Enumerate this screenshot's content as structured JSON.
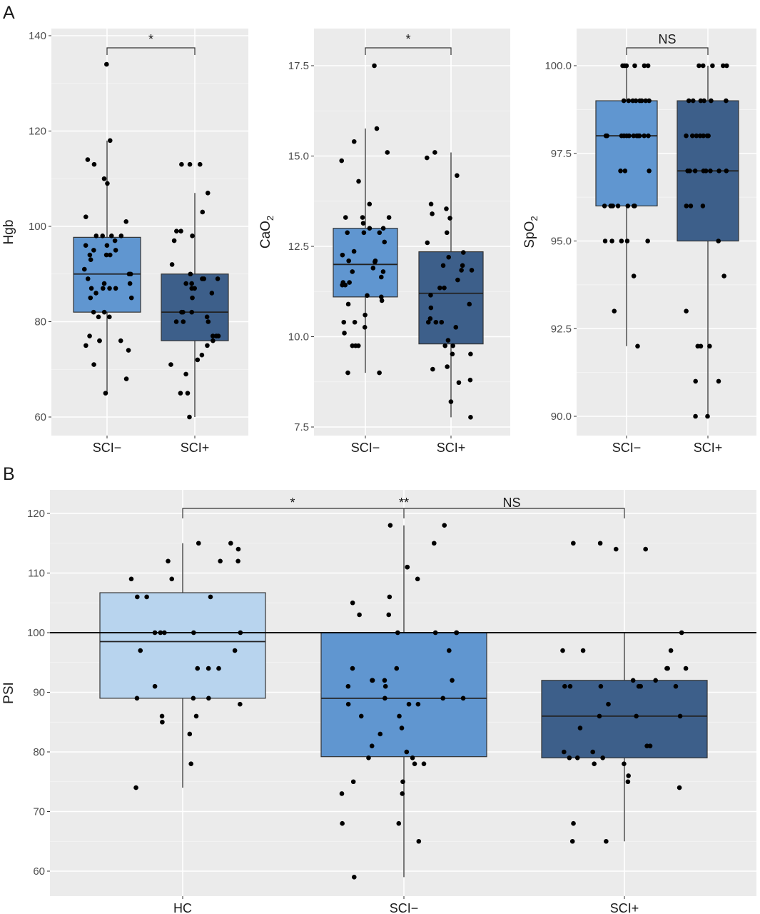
{
  "panel_labels": [
    "A",
    "B"
  ],
  "chart_data": [
    {
      "type": "box",
      "panel": "A",
      "ylabel": "Hgb",
      "ylabel_sub": "",
      "yticks": [
        60,
        80,
        100,
        120,
        140
      ],
      "ylim": [
        57,
        141
      ],
      "categories": [
        "SCI−",
        "SCI+"
      ],
      "colors": [
        "#6096d0",
        "#3d5f8a"
      ],
      "significance": [
        {
          "from": 0,
          "to": 1,
          "label": "*"
        }
      ],
      "boxes": [
        {
          "q1": 82,
          "median": 90,
          "q3": 97.7,
          "whisker_low": 65,
          "whisker_high": 118
        },
        {
          "q1": 76,
          "median": 82,
          "q3": 90,
          "whisker_low": 60,
          "whisker_high": 107
        }
      ],
      "points": [
        [
          134,
          118,
          114,
          113,
          110,
          109,
          102,
          101,
          98,
          98,
          98,
          98,
          97,
          96,
          96,
          95,
          95,
          94,
          94,
          94,
          93,
          91,
          90,
          90,
          89,
          88,
          88,
          87,
          87,
          87,
          87,
          86,
          85,
          85,
          82,
          82,
          81,
          81,
          77,
          76,
          76,
          76,
          75,
          74,
          71,
          68,
          65
        ],
        [
          113,
          113,
          113,
          107,
          103,
          99,
          99,
          98,
          97,
          92,
          90,
          89,
          89,
          89,
          88,
          88,
          87,
          87,
          86,
          85,
          82,
          82,
          82,
          81,
          80,
          80,
          80,
          77,
          77,
          77,
          76,
          75,
          73,
          72,
          71,
          69,
          65,
          65,
          60
        ]
      ]
    },
    {
      "type": "box",
      "panel": "A",
      "ylabel": "CaO",
      "ylabel_sub": "2",
      "yticks": [
        7.5,
        10.0,
        12.5,
        15.0,
        17.5
      ],
      "ylim": [
        7.0,
        18.5
      ],
      "categories": [
        "SCI−",
        "SCI+"
      ],
      "colors": [
        "#6096d0",
        "#3d5f8a"
      ],
      "significance": [
        {
          "from": 0,
          "to": 1,
          "label": "*"
        }
      ],
      "boxes": [
        {
          "q1": 11.1,
          "median": 12.0,
          "q3": 13.0,
          "whisker_low": 9.0,
          "whisker_high": 15.76
        },
        {
          "q1": 9.8,
          "median": 11.2,
          "q3": 12.35,
          "whisker_low": 7.77,
          "whisker_high": 15.1
        }
      ],
      "points": [
        [
          17.5,
          15.76,
          15.4,
          15.1,
          14.87,
          14.3,
          13.67,
          13.3,
          13.3,
          13.3,
          13.14,
          13.0,
          13.0,
          12.88,
          12.88,
          12.88,
          12.62,
          12.36,
          12.26,
          12.1,
          12.1,
          12.07,
          11.9,
          11.8,
          11.8,
          11.65,
          11.5,
          11.5,
          11.43,
          11.43,
          11.14,
          11.1,
          11.0,
          10.9,
          10.6,
          10.4,
          10.4,
          10.26,
          10.1,
          9.75,
          9.75,
          9.75,
          9.0,
          9.0
        ],
        [
          15.1,
          14.95,
          14.46,
          13.67,
          13.54,
          13.4,
          13.28,
          12.88,
          12.6,
          12.33,
          12.2,
          11.97,
          11.97,
          11.84,
          11.84,
          11.57,
          11.35,
          11.35,
          11.15,
          10.9,
          10.8,
          10.5,
          10.4,
          10.4,
          10.4,
          10.26,
          9.9,
          9.75,
          9.75,
          9.52,
          9.52,
          9.17,
          9.1,
          8.8,
          8.73,
          8.2,
          7.77
        ]
      ]
    },
    {
      "type": "box",
      "panel": "A",
      "ylabel": "SpO",
      "ylabel_sub": "2",
      "yticks": [
        90.0,
        92.5,
        95.0,
        97.5,
        100.0
      ],
      "ylim": [
        89.5,
        101.0
      ],
      "categories": [
        "SCI−",
        "SCI+"
      ],
      "colors": [
        "#6096d0",
        "#3d5f8a"
      ],
      "significance": [
        {
          "from": 0,
          "to": 1,
          "label": "NS"
        }
      ],
      "boxes": [
        {
          "q1": 96,
          "median": 98,
          "q3": 99,
          "whisker_low": 92,
          "whisker_high": 100
        },
        {
          "q1": 95,
          "median": 97,
          "q3": 99,
          "whisker_low": 90,
          "whisker_high": 100
        }
      ],
      "points": [
        [
          100,
          100,
          100,
          100,
          100,
          100,
          99,
          99,
          99,
          99,
          99,
          99,
          99,
          99,
          98,
          98,
          98,
          98,
          98,
          98,
          98,
          98,
          98,
          98,
          98,
          98,
          97,
          97,
          97,
          96,
          96,
          96,
          96,
          96,
          96,
          96,
          96,
          95,
          95,
          95,
          95,
          95,
          94,
          93,
          92
        ],
        [
          100,
          100,
          100,
          100,
          100,
          99,
          99,
          99,
          99,
          99,
          99,
          98,
          98,
          98,
          98,
          98,
          98,
          98,
          97,
          97,
          97,
          97,
          97,
          97,
          97,
          97,
          96,
          96,
          96,
          95,
          94,
          93,
          92,
          92,
          92,
          91,
          91,
          90,
          90
        ]
      ]
    },
    {
      "type": "box",
      "panel": "B",
      "ylabel": "PSI",
      "ylabel_sub": "",
      "yticks": [
        60,
        70,
        80,
        90,
        100,
        110,
        120
      ],
      "ylim": [
        56,
        124
      ],
      "reference_line": 100,
      "categories": [
        "HC",
        "SCI−",
        "SCI+"
      ],
      "colors": [
        "#b8d4ee",
        "#6096d0",
        "#3d5f8a"
      ],
      "significance": [
        {
          "from": 0,
          "to": 1,
          "label": "*"
        },
        {
          "from": 1,
          "to": 1,
          "label": "**"
        },
        {
          "from": 1,
          "to": 2,
          "label": "NS"
        }
      ],
      "boxes": [
        {
          "q1": 89,
          "median": 98.5,
          "q3": 106.7,
          "whisker_low": 74,
          "whisker_high": 115
        },
        {
          "q1": 79.2,
          "median": 89,
          "q3": 100,
          "whisker_low": 59,
          "whisker_high": 118
        },
        {
          "q1": 79,
          "median": 86,
          "q3": 92,
          "whisker_low": 65,
          "whisker_high": 100
        }
      ],
      "points": [
        [
          115,
          115,
          114,
          112,
          112,
          112,
          109,
          109,
          106,
          106,
          106,
          100,
          100,
          100,
          100,
          100,
          97,
          97,
          94,
          94,
          94,
          91,
          89,
          89,
          89,
          88,
          86,
          86,
          85,
          83,
          78,
          74
        ],
        [
          118,
          118,
          115,
          111,
          111,
          109,
          106,
          105,
          103,
          103,
          100,
          100,
          100,
          100,
          97,
          94,
          94,
          92,
          92,
          92,
          92,
          91,
          91,
          89,
          89,
          89,
          88,
          88,
          88,
          86,
          86,
          84,
          83,
          81,
          80,
          79,
          79,
          78,
          78,
          75,
          75,
          73,
          73,
          68,
          68,
          65,
          59
        ],
        [
          115,
          115,
          114,
          114,
          100,
          97,
          97,
          97,
          94,
          94,
          94,
          92,
          92,
          91,
          91,
          91,
          91,
          91,
          91,
          88,
          86,
          86,
          86,
          84,
          81,
          81,
          80,
          80,
          79,
          79,
          79,
          78,
          78,
          76,
          75,
          74,
          68,
          65,
          65
        ]
      ]
    }
  ]
}
